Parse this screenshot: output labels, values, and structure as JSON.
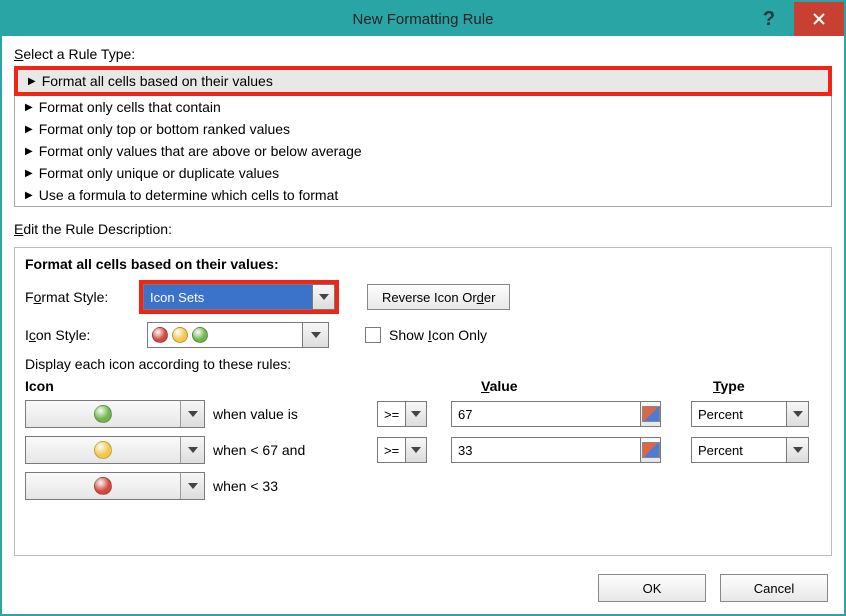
{
  "window": {
    "title": "New Formatting Rule"
  },
  "labels": {
    "select_rule_type_pre": "S",
    "select_rule_type_post": "elect a Rule Type:",
    "edit_desc_pre": "E",
    "edit_desc_post": "dit the Rule Description:"
  },
  "rule_types": [
    "Format all cells based on their values",
    "Format only cells that contain",
    "Format only top or bottom ranked values",
    "Format only values that are above or below average",
    "Format only unique or duplicate values",
    "Use a formula to determine which cells to format"
  ],
  "selected_rule_index": 0,
  "desc": {
    "heading": "Format all cells based on their values:",
    "format_style_label_pre": "F",
    "format_style_label_mid": "o",
    "format_style_label_post": "rmat Style:",
    "format_style_value": "Icon Sets",
    "reverse_btn_pre": "Reverse Icon Or",
    "reverse_btn_u": "d",
    "reverse_btn_post": "er",
    "icon_style_label_pre": "I",
    "icon_style_label_u": "c",
    "icon_style_label_post": "on Style:",
    "show_icon_only_pre": "Show ",
    "show_icon_only_u": "I",
    "show_icon_only_post": "con Only",
    "display_rules": "Display each icon according to these rules:",
    "col_icon": "Icon",
    "col_value_u": "V",
    "col_value_post": "alue",
    "col_type_u": "T",
    "col_type_post": "ype",
    "preview_colors": [
      "#d24a3e",
      "#f2c84b",
      "#6fb64d"
    ]
  },
  "icon_rules": [
    {
      "color": "#6fb64d",
      "when": "when value is",
      "op": ">=",
      "value": "67",
      "type": "Percent"
    },
    {
      "color": "#f2c84b",
      "when": "when < 67 and",
      "op": ">=",
      "value": "33",
      "type": "Percent"
    },
    {
      "color": "#d24a3e",
      "when": "when < 33",
      "op": "",
      "value": "",
      "type": ""
    }
  ],
  "footer": {
    "ok": "OK",
    "cancel": "Cancel"
  },
  "colors": {
    "highlight": "#f02516",
    "titlebar": "#2aa5a5",
    "close": "#c84031",
    "selection_bg": "#3a73c9"
  }
}
